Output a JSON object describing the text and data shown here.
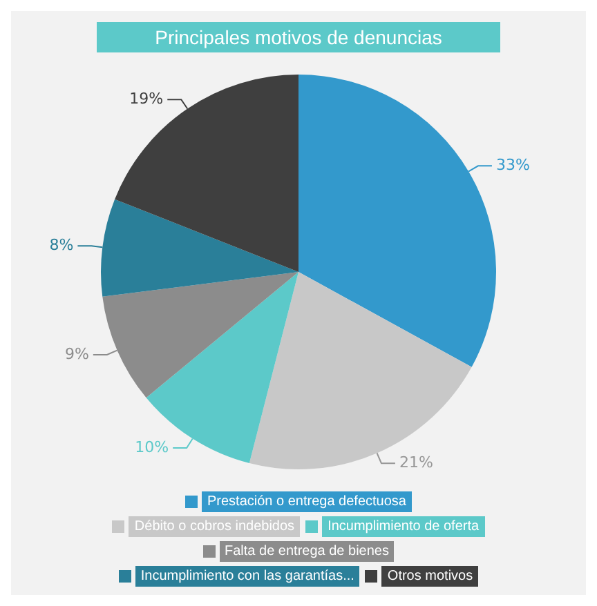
{
  "chart_data": {
    "type": "pie",
    "title": "Principales motivos de denuncias",
    "categories": [
      "Prestación o entrega defectuosa",
      "Débito o cobros indebidos",
      "Incumplimiento de oferta",
      "Falta de entrega de bienes",
      "Incumplimiento con las garantías...",
      "Otros motivos"
    ],
    "values": [
      33,
      21,
      10,
      9,
      8,
      19
    ],
    "value_labels": [
      "33%",
      "21%",
      "10%",
      "9%",
      "8%",
      "19%"
    ],
    "colors": [
      "#3399cc",
      "#c8c8c8",
      "#5cc9c9",
      "#8c8c8c",
      "#2a7f99",
      "#3f3f3f"
    ],
    "legend": "bottom"
  }
}
